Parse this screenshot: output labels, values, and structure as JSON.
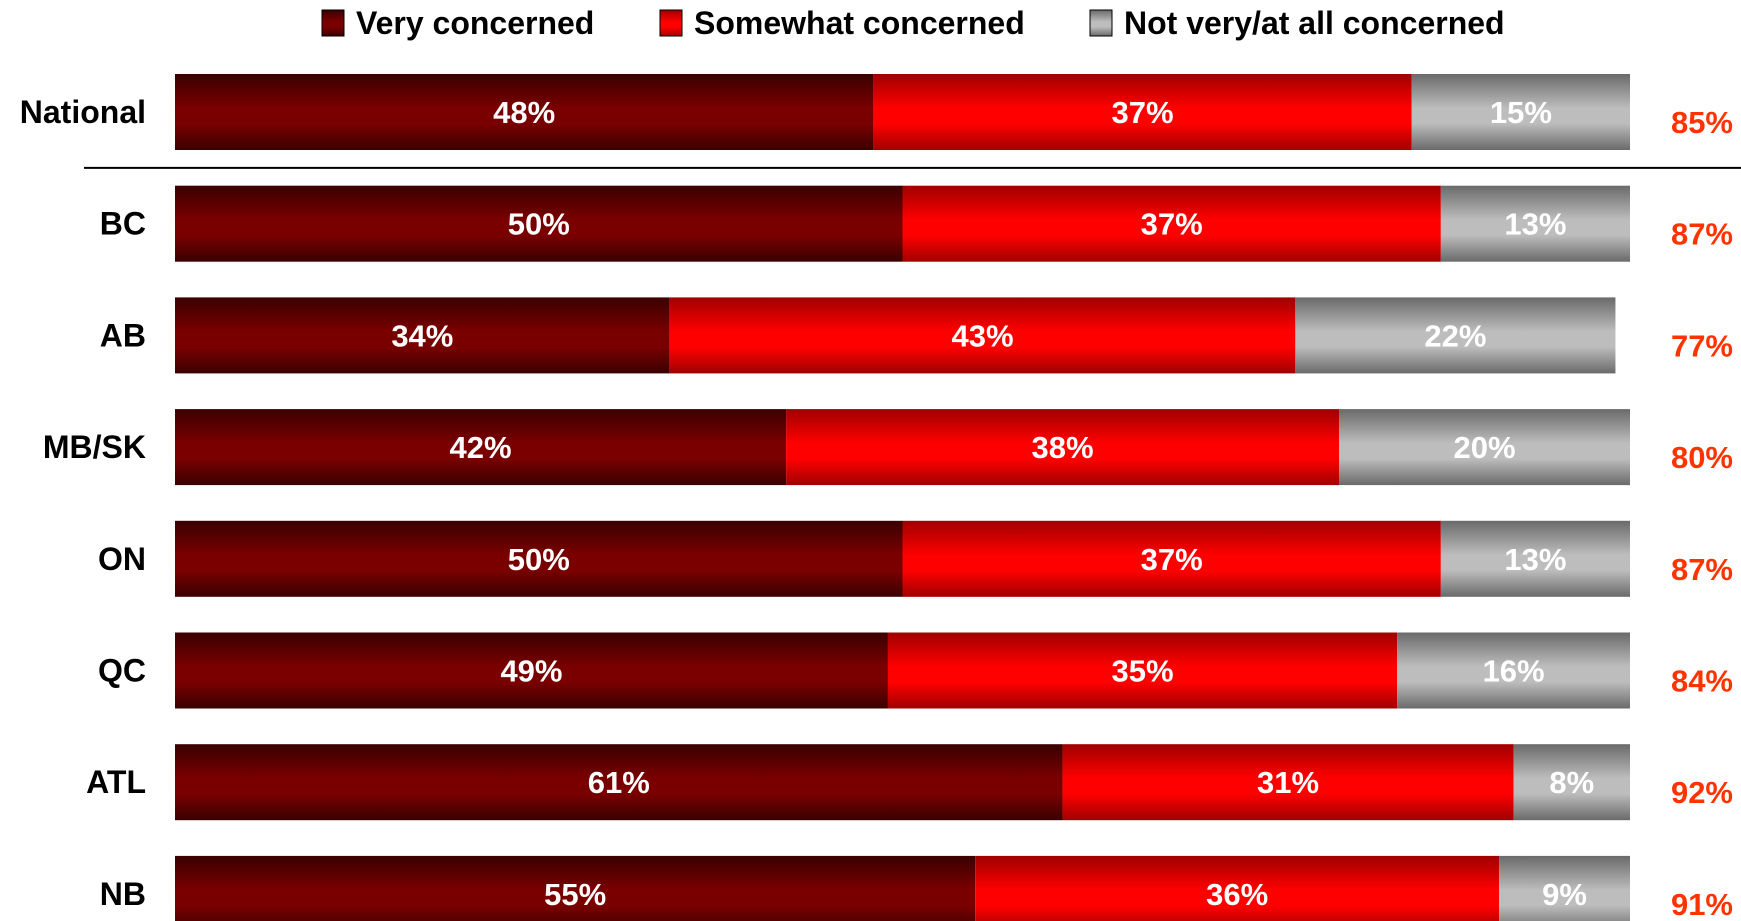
{
  "chart_data": {
    "type": "bar",
    "orientation": "horizontal",
    "stacked": true,
    "title": "",
    "xlabel": "",
    "ylabel": "",
    "legend_position": "top",
    "grid": false,
    "categories": [
      "National",
      "BC",
      "AB",
      "MB/SK",
      "ON",
      "QC",
      "ATL",
      "NB"
    ],
    "series": [
      {
        "name": "Very concerned",
        "color": "#7a0000",
        "values": [
          48,
          50,
          34,
          42,
          50,
          49,
          61,
          55
        ],
        "labels": [
          "48%",
          "50%",
          "34%",
          "42%",
          "50%",
          "49%",
          "61%",
          "55%"
        ]
      },
      {
        "name": "Somewhat concerned",
        "color": "#ff0000",
        "values": [
          37,
          37,
          43,
          38,
          37,
          35,
          31,
          36
        ],
        "labels": [
          "37%",
          "37%",
          "43%",
          "38%",
          "37%",
          "35%",
          "31%",
          "36%"
        ]
      },
      {
        "name": "Not very/at all concerned",
        "color": "#a6a6a6",
        "values": [
          15,
          13,
          22,
          20,
          13,
          16,
          8,
          9
        ],
        "labels": [
          "15%",
          "13%",
          "22%",
          "20%",
          "13%",
          "16%",
          "8%",
          "9%"
        ]
      }
    ],
    "totals": {
      "color": "#ff3300",
      "values": [
        85,
        87,
        77,
        80,
        87,
        84,
        92,
        91
      ],
      "labels": [
        "85%",
        "87%",
        "77%",
        "80%",
        "87%",
        "84%",
        "92%",
        "91%"
      ]
    },
    "separator_after_category": "National"
  }
}
